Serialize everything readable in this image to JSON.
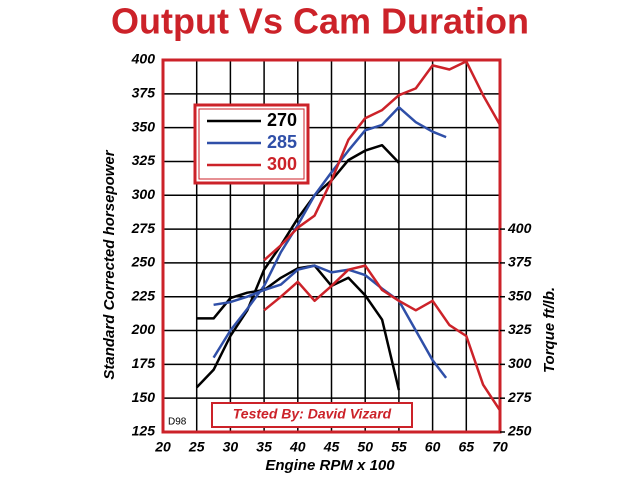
{
  "chart_data": {
    "type": "line",
    "title": "Output Vs Cam Duration",
    "x_label": "Engine RPM x 100",
    "y_label": "Standard Corrected horsepower",
    "y2_label": "Torque ft/lb.",
    "annotations": [
      "Tested By: David Vizard",
      "D98"
    ],
    "xlim": [
      20,
      70
    ],
    "xticks": [
      20,
      25,
      30,
      35,
      40,
      45,
      50,
      55,
      60,
      65,
      70
    ],
    "ylim": [
      125,
      400
    ],
    "yticks": [
      125,
      150,
      175,
      200,
      225,
      250,
      275,
      300,
      325,
      350,
      375,
      400
    ],
    "y2lim": [
      250,
      525
    ],
    "y2ticks": [
      250,
      275,
      300,
      325,
      350,
      375,
      400
    ],
    "grid": true,
    "legend": "upper left",
    "series": [
      {
        "name": "270",
        "color": "#000000",
        "x": [
          25,
          27.5,
          30,
          32.5,
          35,
          37.5,
          40,
          42.5,
          45,
          47.5,
          50,
          52.5,
          55
        ],
        "values": [
          158,
          171,
          196,
          215,
          245,
          263,
          283,
          300,
          311,
          326,
          333,
          337,
          324
        ]
      },
      {
        "name": "285",
        "color": "#2f4fa8",
        "x": [
          27.5,
          30,
          32.5,
          35,
          37.5,
          40,
          42.5,
          45,
          47.5,
          50,
          52.5,
          55,
          57.5,
          60,
          62
        ],
        "values": [
          180,
          200,
          216,
          233,
          258,
          278,
          300,
          317,
          333,
          348,
          352,
          365,
          354,
          347,
          343
        ]
      },
      {
        "name": "300",
        "color": "#cc2229",
        "x": [
          35,
          37.5,
          40,
          42.5,
          45,
          47.5,
          50,
          52.5,
          55,
          57.5,
          60,
          62.5,
          65,
          67.5,
          70
        ],
        "values": [
          252,
          263,
          276,
          285,
          311,
          341,
          357,
          363,
          374,
          379,
          396,
          393,
          399,
          374,
          352
        ]
      },
      {
        "color": "#000000",
        "axis": "y2",
        "x": [
          25,
          27.5,
          30,
          32.5,
          35,
          37.5,
          40,
          42.5,
          45,
          47.5,
          50,
          52.5,
          55
        ],
        "values": [
          334,
          334,
          349,
          353,
          355,
          364,
          371,
          373,
          358,
          364,
          351,
          333,
          281
        ]
      },
      {
        "color": "#2f4fa8",
        "axis": "y2",
        "x": [
          27.5,
          30,
          32.5,
          35,
          37.5,
          40,
          42.5,
          45,
          47.5,
          50,
          52.5,
          55,
          57.5,
          60,
          62
        ],
        "values": [
          344,
          346,
          350,
          355,
          359,
          370,
          373,
          368,
          370,
          366,
          356,
          347,
          325,
          303,
          290
        ]
      },
      {
        "color": "#cc2229",
        "axis": "y2",
        "x": [
          35,
          37.5,
          40,
          42.5,
          45,
          47.5,
          50,
          52.5,
          55,
          57.5,
          60,
          62.5,
          65,
          67.5,
          70
        ],
        "values": [
          340,
          350,
          361,
          347,
          358,
          370,
          373,
          355,
          347,
          340,
          347,
          329,
          321,
          285,
          266
        ]
      }
    ]
  }
}
